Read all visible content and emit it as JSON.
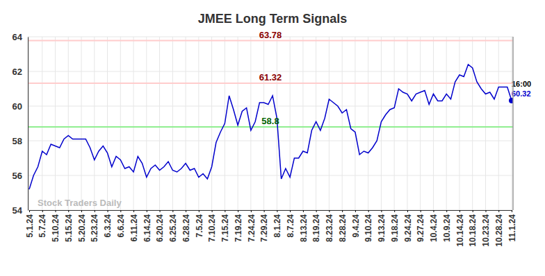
{
  "chart_data": {
    "type": "line",
    "title": "JMEE Long Term Signals",
    "watermark": "Stock Traders Daily",
    "last_label": "16:00",
    "categories": [
      "5.1.24",
      null,
      null,
      "5.7.24",
      null,
      null,
      "5.10.24",
      null,
      null,
      "5.15.24",
      null,
      null,
      "5.20.24",
      null,
      null,
      "5.23.24",
      null,
      null,
      "6.3.24",
      null,
      null,
      "6.6.24",
      null,
      null,
      "6.11.24",
      null,
      null,
      "6.14.24",
      null,
      null,
      "6.20.24",
      null,
      null,
      "6.25.24",
      null,
      null,
      "6.28.24",
      null,
      null,
      "7.5.24",
      null,
      null,
      "7.10.24",
      null,
      null,
      "7.15.24",
      null,
      null,
      "7.19.24",
      null,
      null,
      "7.24.24",
      null,
      null,
      "7.29.24",
      null,
      null,
      "8.1.24",
      null,
      null,
      "8.7.24",
      null,
      null,
      "8.13.24",
      null,
      null,
      "8.19.24",
      null,
      null,
      "8.23.24",
      null,
      null,
      "8.28.24",
      null,
      null,
      "9.4.24",
      null,
      null,
      "9.10.24",
      null,
      null,
      "9.13.24",
      null,
      null,
      "9.18.24",
      null,
      null,
      "9.24.24",
      null,
      null,
      "9.27.24",
      null,
      null,
      "10.4.24",
      null,
      null,
      "10.9.24",
      null,
      null,
      "10.14.24",
      null,
      null,
      "10.18.24",
      null,
      null,
      "10.23.24",
      null,
      null,
      "10.28.24",
      null,
      null,
      "11.1.24"
    ],
    "series": [
      {
        "color": "#0000cc",
        "values": [
          55.2,
          56.0,
          56.5,
          57.4,
          57.2,
          57.8,
          57.7,
          57.6,
          58.1,
          58.3,
          58.1,
          58.1,
          58.1,
          58.1,
          57.6,
          56.9,
          57.4,
          57.7,
          57.3,
          56.5,
          57.1,
          56.9,
          56.4,
          56.5,
          56.2,
          57.1,
          56.7,
          55.9,
          56.4,
          56.6,
          56.3,
          56.5,
          56.8,
          56.3,
          56.2,
          56.4,
          56.7,
          56.3,
          56.4,
          55.9,
          56.1,
          55.8,
          56.5,
          57.9,
          58.5,
          59.0,
          60.6,
          59.8,
          58.9,
          59.7,
          59.9,
          58.6,
          59.1,
          60.2,
          60.2,
          60.1,
          60.6,
          59.3,
          55.8,
          56.4,
          55.9,
          57.0,
          57.0,
          57.4,
          57.3,
          58.6,
          59.1,
          58.6,
          59.3,
          60.4,
          60.2,
          60.0,
          59.6,
          59.8,
          58.7,
          58.5,
          57.2,
          57.4,
          57.3,
          57.6,
          58.0,
          59.1,
          59.5,
          59.8,
          59.9,
          61.0,
          60.8,
          60.7,
          60.3,
          60.7,
          60.8,
          60.9,
          60.1,
          60.7,
          60.3,
          60.3,
          60.7,
          60.4,
          61.4,
          61.8,
          61.7,
          62.4,
          62.2,
          61.4,
          61.0,
          60.7,
          60.8,
          60.4,
          61.1,
          61.1,
          61.1,
          60.32
        ]
      }
    ],
    "annotations": [
      {
        "value": 63.78,
        "color": "#ffcccc"
      },
      {
        "value": 61.32,
        "color": "#ffcccc"
      },
      {
        "value": 58.8,
        "color": "#90ee90"
      }
    ],
    "ylim": [
      54,
      64
    ],
    "yticks": [
      54,
      56,
      58,
      60,
      62,
      64
    ],
    "grid": true
  }
}
